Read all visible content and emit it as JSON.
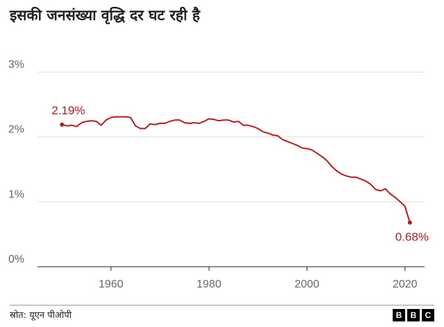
{
  "title": "इसकी जनसंख्या वृद्धि दर घट रही है",
  "source": "स्रोत: यूएन पीओपी",
  "logo_letters": [
    "B",
    "B",
    "C"
  ],
  "colors": {
    "line": "#bb1919",
    "grid": "#dddddd",
    "axis": "#222222",
    "text": "#666666"
  },
  "chart_data": {
    "type": "line",
    "title": "इसकी जनसंख्या वृद्धि दर घट रही है",
    "xlabel": "",
    "ylabel": "",
    "xlim": [
      1945,
      2024
    ],
    "ylim": [
      0,
      3
    ],
    "x_ticks": [
      1960,
      1980,
      2000,
      2020
    ],
    "y_ticks": [
      0,
      1,
      2,
      3
    ],
    "y_tick_labels": [
      "0%",
      "1%",
      "2%",
      "3%"
    ],
    "grid": true,
    "series": [
      {
        "color": "#bb1919",
        "x": [
          1950,
          1951,
          1952,
          1953,
          1954,
          1955,
          1956,
          1957,
          1958,
          1959,
          1960,
          1961,
          1962,
          1963,
          1964,
          1965,
          1966,
          1967,
          1968,
          1969,
          1970,
          1971,
          1972,
          1973,
          1974,
          1975,
          1976,
          1977,
          1978,
          1979,
          1980,
          1981,
          1982,
          1983,
          1984,
          1985,
          1986,
          1987,
          1988,
          1989,
          1990,
          1991,
          1992,
          1993,
          1994,
          1995,
          1996,
          1997,
          1998,
          1999,
          2000,
          2001,
          2002,
          2003,
          2004,
          2005,
          2006,
          2007,
          2008,
          2009,
          2010,
          2011,
          2012,
          2013,
          2014,
          2015,
          2016,
          2017,
          2018,
          2019,
          2020,
          2021
        ],
        "y": [
          2.19,
          2.17,
          2.18,
          2.16,
          2.22,
          2.24,
          2.25,
          2.24,
          2.18,
          2.26,
          2.3,
          2.31,
          2.31,
          2.31,
          2.3,
          2.17,
          2.13,
          2.13,
          2.2,
          2.19,
          2.21,
          2.21,
          2.24,
          2.26,
          2.26,
          2.22,
          2.21,
          2.22,
          2.21,
          2.24,
          2.28,
          2.27,
          2.25,
          2.26,
          2.26,
          2.23,
          2.24,
          2.18,
          2.18,
          2.16,
          2.13,
          2.08,
          2.06,
          2.03,
          2.02,
          1.96,
          1.93,
          1.9,
          1.87,
          1.83,
          1.82,
          1.8,
          1.75,
          1.7,
          1.64,
          1.55,
          1.48,
          1.43,
          1.4,
          1.38,
          1.38,
          1.35,
          1.32,
          1.27,
          1.19,
          1.17,
          1.2,
          1.12,
          1.07,
          1.0,
          0.93,
          0.68
        ]
      }
    ],
    "annotations": [
      {
        "x": 1950,
        "y": 2.19,
        "text": "2.19%"
      },
      {
        "x": 2021,
        "y": 0.68,
        "text": "0.68%"
      }
    ]
  }
}
